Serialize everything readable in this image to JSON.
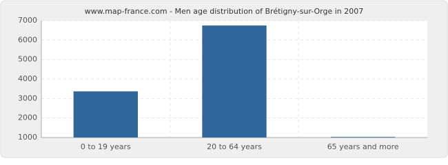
{
  "chart_data": {
    "type": "bar",
    "title": "www.map-france.com - Men age distribution of Brétigny-sur-Orge in 2007",
    "categories": [
      "0 to 19 years",
      "20 to 64 years",
      "65 years and more"
    ],
    "values": [
      3370,
      6750,
      1030
    ],
    "color": "#31669a",
    "ylim": [
      1000,
      7000
    ],
    "yticks": [
      1000,
      2000,
      3000,
      4000,
      5000,
      6000,
      7000
    ],
    "grid": true
  }
}
